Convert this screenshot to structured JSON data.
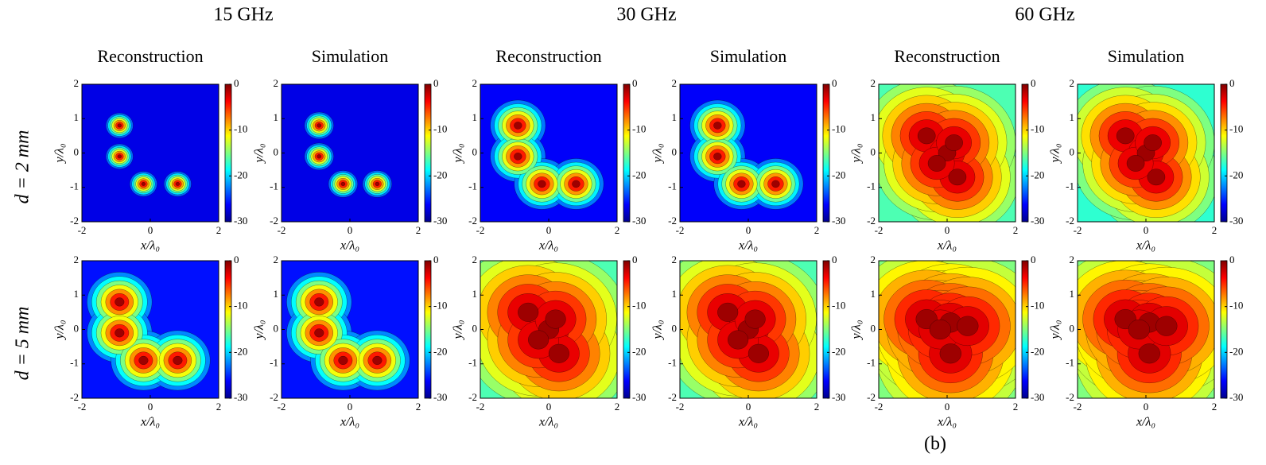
{
  "column_headers": [
    "15 GHz",
    "30 GHz",
    "60 GHz"
  ],
  "row_labels": [
    "d = 2 mm",
    "d = 5 mm"
  ],
  "caption": "(b)",
  "chart_data": [
    {
      "type": "contour",
      "title": "Reconstruction",
      "xlabel": "x/λ₀",
      "ylabel": "y/λ₀",
      "xlim": [
        -2,
        2
      ],
      "ylim": [
        -2,
        2
      ],
      "xticks": [
        -2,
        0,
        2
      ],
      "yticks": [
        -2,
        -1,
        0,
        1,
        2
      ],
      "colorbar": {
        "lim": [
          -30,
          0
        ],
        "ticks": [
          0,
          -10,
          -20,
          -30
        ]
      }
    },
    {
      "type": "contour",
      "title": "Simulation",
      "xlabel": "x/λ₀",
      "ylabel": "y/λ₀",
      "xlim": [
        -2,
        2
      ],
      "ylim": [
        -2,
        2
      ],
      "xticks": [
        -2,
        0,
        2
      ],
      "yticks": [
        -2,
        -1,
        0,
        1,
        2
      ],
      "colorbar": {
        "lim": [
          -30,
          0
        ],
        "ticks": [
          0,
          -10,
          -20,
          -30
        ]
      }
    },
    {
      "type": "contour",
      "title": "Reconstruction",
      "xlabel": "x/λ₀",
      "ylabel": "y/λ₀",
      "xlim": [
        -2,
        2
      ],
      "ylim": [
        -2,
        2
      ],
      "xticks": [
        -2,
        0,
        2
      ],
      "yticks": [
        -2,
        -1,
        0,
        1,
        2
      ],
      "colorbar": {
        "lim": [
          -30,
          0
        ],
        "ticks": [
          0,
          -10,
          -20,
          -30
        ]
      }
    },
    {
      "type": "contour",
      "title": "Simulation",
      "xlabel": "x/λ₀",
      "ylabel": "y/λ₀",
      "xlim": [
        -2,
        2
      ],
      "ylim": [
        -2,
        2
      ],
      "xticks": [
        -2,
        0,
        2
      ],
      "yticks": [
        -2,
        -1,
        0,
        1,
        2
      ],
      "colorbar": {
        "lim": [
          -30,
          0
        ],
        "ticks": [
          0,
          -10,
          -20,
          -30
        ]
      }
    },
    {
      "type": "contour",
      "title": "Reconstruction",
      "xlabel": "x/λ₀",
      "ylabel": "y/λ₀",
      "xlim": [
        -2,
        2
      ],
      "ylim": [
        -2,
        2
      ],
      "xticks": [
        -2,
        0,
        2
      ],
      "yticks": [
        -2,
        -1,
        0,
        1,
        2
      ],
      "colorbar": {
        "lim": [
          -30,
          0
        ],
        "ticks": [
          0,
          -10,
          -20,
          -30
        ]
      }
    },
    {
      "type": "contour",
      "title": "Simulation",
      "xlabel": "x/λ₀",
      "ylabel": "y/λ₀",
      "xlim": [
        -2,
        2
      ],
      "ylim": [
        -2,
        2
      ],
      "xticks": [
        -2,
        0,
        2
      ],
      "yticks": [
        -2,
        -1,
        0,
        1,
        2
      ],
      "colorbar": {
        "lim": [
          -30,
          0
        ],
        "ticks": [
          0,
          -10,
          -20,
          -30
        ]
      }
    },
    {
      "type": "contour",
      "xlabel": "x/λ₀",
      "ylabel": "y/λ₀",
      "xlim": [
        -2,
        2
      ],
      "ylim": [
        -2,
        2
      ],
      "xticks": [
        -2,
        0,
        2
      ],
      "yticks": [
        -2,
        -1,
        0,
        1,
        2
      ],
      "colorbar": {
        "lim": [
          -30,
          0
        ],
        "ticks": [
          0,
          -10,
          -20,
          -30
        ]
      }
    },
    {
      "type": "contour",
      "xlabel": "x/λ₀",
      "ylabel": "y/λ₀",
      "xlim": [
        -2,
        2
      ],
      "ylim": [
        -2,
        2
      ],
      "xticks": [
        -2,
        0,
        2
      ],
      "yticks": [
        -2,
        -1,
        0,
        1,
        2
      ],
      "colorbar": {
        "lim": [
          -30,
          0
        ],
        "ticks": [
          0,
          -10,
          -20,
          -30
        ]
      }
    },
    {
      "type": "contour",
      "xlabel": "x/λ₀",
      "ylabel": "y/λ₀",
      "xlim": [
        -2,
        2
      ],
      "ylim": [
        -2,
        2
      ],
      "xticks": [
        -2,
        0,
        2
      ],
      "yticks": [
        -2,
        -1,
        0,
        1,
        2
      ],
      "colorbar": {
        "lim": [
          -30,
          0
        ],
        "ticks": [
          0,
          -10,
          -20,
          -30
        ]
      }
    },
    {
      "type": "contour",
      "xlabel": "x/λ₀",
      "ylabel": "y/λ₀",
      "xlim": [
        -2,
        2
      ],
      "ylim": [
        -2,
        2
      ],
      "xticks": [
        -2,
        0,
        2
      ],
      "yticks": [
        -2,
        -1,
        0,
        1,
        2
      ],
      "colorbar": {
        "lim": [
          -30,
          0
        ],
        "ticks": [
          0,
          -10,
          -20,
          -30
        ]
      }
    },
    {
      "type": "contour",
      "xlabel": "x/λ₀",
      "ylabel": "y/λ₀",
      "xlim": [
        -2,
        2
      ],
      "ylim": [
        -2,
        2
      ],
      "xticks": [
        -2,
        0,
        2
      ],
      "yticks": [
        -2,
        -1,
        0,
        1,
        2
      ],
      "colorbar": {
        "lim": [
          -30,
          0
        ],
        "ticks": [
          0,
          -10,
          -20,
          -30
        ]
      }
    },
    {
      "type": "contour",
      "xlabel": "x/λ₀",
      "ylabel": "y/λ₀",
      "xlim": [
        -2,
        2
      ],
      "ylim": [
        -2,
        2
      ],
      "xticks": [
        -2,
        0,
        2
      ],
      "yticks": [
        -2,
        -1,
        0,
        1,
        2
      ],
      "colorbar": {
        "lim": [
          -30,
          0
        ],
        "ticks": [
          0,
          -10,
          -20,
          -30
        ]
      }
    }
  ]
}
